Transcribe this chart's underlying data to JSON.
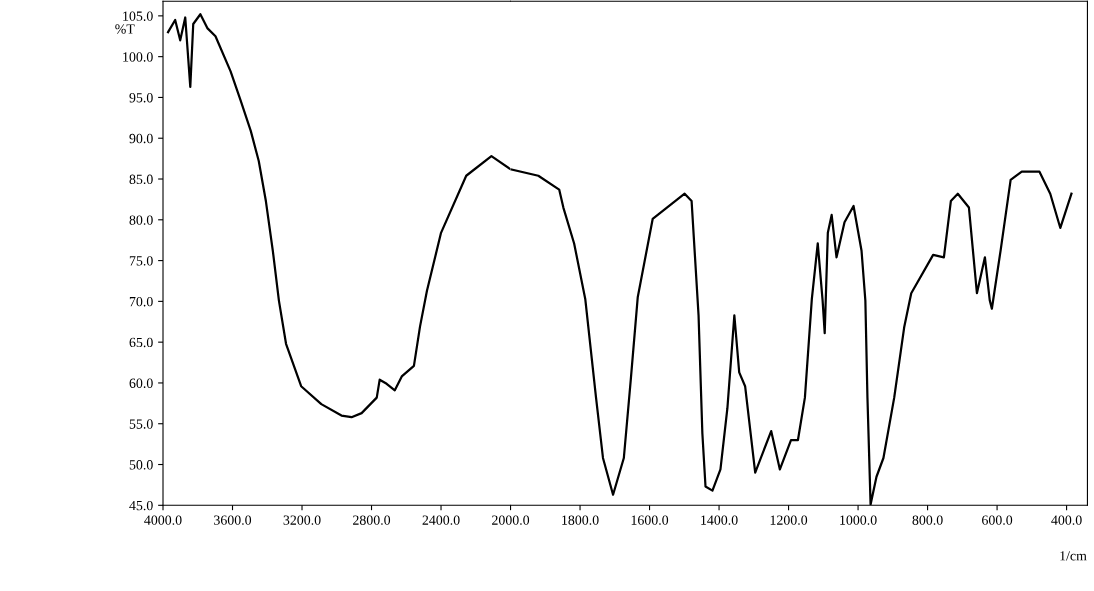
{
  "chart_data": [
    {
      "type": "line",
      "ylabel": "%T",
      "x": [
        3971,
        3930,
        3901,
        3872,
        3843,
        3826,
        3785,
        3745,
        3698,
        3611,
        3553,
        3495,
        3449,
        3408,
        3368,
        3333,
        3292,
        3205,
        3089,
        2973,
        2915,
        2857,
        2770,
        2753,
        2713,
        2666,
        2626,
        2556,
        2521,
        2481,
        2400,
        2255,
        2110,
        2000
      ],
      "series": [
        {
          "color": "#000000",
          "values": [
            103,
            104.5,
            102,
            104.8,
            96.3,
            104,
            105.2,
            103.5,
            102.5,
            98.2,
            94.6,
            90.9,
            87.2,
            82.3,
            76.2,
            70.1,
            64.8,
            59.6,
            57.4,
            56.0,
            55.8,
            56.3,
            58.2,
            60.4,
            59.9,
            59.1,
            60.8,
            62.1,
            66.9,
            71.3,
            78.4,
            85.4,
            87.8,
            86.2
          ]
        }
      ],
      "xlim": [
        4000,
        2000
      ],
      "xticks": [
        {
          "value": 4000,
          "label": "4000.0"
        },
        {
          "value": 3600,
          "label": "3600.0"
        },
        {
          "value": 3200,
          "label": "3200.0"
        },
        {
          "value": 2800,
          "label": "2800.0"
        },
        {
          "value": 2400,
          "label": "2400.0"
        }
      ],
      "ylim": [
        45,
        106.8
      ],
      "yticks": [
        {
          "value": 45,
          "label": "45.0"
        },
        {
          "value": 50,
          "label": "50.0"
        },
        {
          "value": 55,
          "label": "55.0"
        },
        {
          "value": 60,
          "label": "60.0"
        },
        {
          "value": 65,
          "label": "65.0"
        },
        {
          "value": 70,
          "label": "70.0"
        },
        {
          "value": 75,
          "label": "75.0"
        },
        {
          "value": 80,
          "label": "80.0"
        },
        {
          "value": 85,
          "label": "85.0"
        },
        {
          "value": 90,
          "label": "90.0"
        },
        {
          "value": 95,
          "label": "95.0"
        },
        {
          "value": 100,
          "label": "100.0"
        },
        {
          "value": 105,
          "label": "105.0"
        }
      ],
      "grid": false,
      "marker": "none",
      "line_style": "solid"
    },
    {
      "type": "line",
      "xlabel": "1/cm",
      "x": [
        2000,
        1920,
        1860,
        1848,
        1817,
        1785,
        1754,
        1734,
        1705,
        1674,
        1654,
        1634,
        1591,
        1499,
        1479,
        1459,
        1448,
        1439,
        1419,
        1396,
        1376,
        1356,
        1342,
        1325,
        1296,
        1250,
        1225,
        1193,
        1173,
        1153,
        1133,
        1116,
        1102,
        1096,
        1087,
        1076,
        1062,
        1039,
        1013,
        990,
        979,
        973,
        964,
        947,
        927,
        896,
        867,
        847,
        784,
        753,
        733,
        713,
        681,
        658,
        635,
        621,
        615,
        590,
        561,
        529,
        478,
        447,
        418,
        386
      ],
      "series": [
        {
          "color": "#000000",
          "values": [
            86.2,
            85.4,
            83.7,
            81.5,
            77.1,
            70.3,
            58.2,
            50.8,
            46.3,
            50.8,
            60.4,
            70.5,
            80.1,
            83.2,
            82.3,
            68.3,
            53.8,
            47.3,
            46.8,
            49.4,
            56.9,
            68.3,
            61.3,
            59.6,
            49.0,
            54.1,
            49.4,
            53.0,
            53.0,
            58.2,
            70.3,
            77.1,
            70.1,
            66.1,
            78.4,
            80.6,
            75.4,
            79.7,
            81.7,
            76.2,
            70.1,
            58.2,
            45.1,
            48.5,
            50.8,
            58.2,
            66.9,
            71.0,
            75.7,
            75.4,
            82.3,
            83.2,
            81.5,
            71.0,
            75.4,
            70.1,
            69.1,
            76.2,
            84.9,
            85.9,
            85.9,
            83.2,
            79.0,
            83.2
          ]
        }
      ],
      "xlim": [
        2000,
        340
      ],
      "xticks": [
        {
          "value": 2000,
          "label": "2000.0"
        },
        {
          "value": 1800,
          "label": "1800.0"
        },
        {
          "value": 1600,
          "label": "1600.0"
        },
        {
          "value": 1400,
          "label": "1400.0"
        },
        {
          "value": 1200,
          "label": "1200.0"
        },
        {
          "value": 1000,
          "label": "1000.0"
        },
        {
          "value": 800,
          "label": "800.0"
        },
        {
          "value": 600,
          "label": "600.0"
        },
        {
          "value": 400,
          "label": "400.0"
        }
      ],
      "ylim": [
        45,
        106.8
      ],
      "tick_labels": "x",
      "grid": false,
      "marker": "none",
      "line_style": "solid"
    }
  ]
}
